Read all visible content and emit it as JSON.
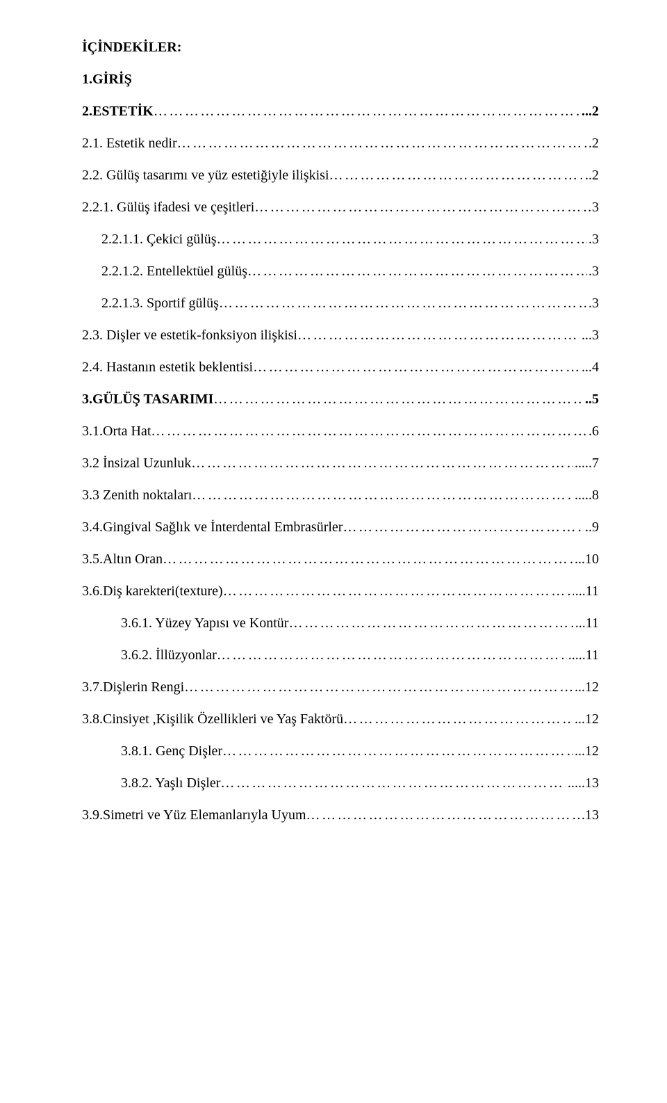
{
  "title": "İÇİNDEKİLER:",
  "entries": [
    {
      "class": "heading bold",
      "label": "1.GİRİŞ"
    },
    {
      "class": "line",
      "labelClass": "bold",
      "label": "2.ESTETİK",
      "leader": true,
      "page": "2",
      "pageClass": "bold",
      "pre": "..."
    },
    {
      "class": "line",
      "label": "2.1. Estetik nedir",
      "leader": true,
      "page": "2",
      "pre": "."
    },
    {
      "class": "line",
      "label": "2.2. Gülüş tasarımı ve yüz estetiğiyle ilişkisi",
      "leader": true,
      "page": "2",
      "pre": ".."
    },
    {
      "class": "line",
      "label": "2.2.1. Gülüş ifadesi ve çeşitleri",
      "leader": true,
      "page": "3"
    },
    {
      "class": "subline",
      "label": "2.2.1.1. Çekici gülüş",
      "leader": true,
      "page": "3",
      "pre": "."
    },
    {
      "class": "subline",
      "label": "2.2.1.2. Entellektüel gülüş",
      "leader": true,
      "page": "3",
      "pre": "."
    },
    {
      "class": "subline",
      "label": "2.2.1.3. Sportif gülüş",
      "leader": true,
      "page": "3",
      "pre": "."
    },
    {
      "class": "line",
      "label": "2.3. Dişler ve estetik-fonksiyon ilişkisi",
      "leader": true,
      "page": "3",
      "pre": "..."
    },
    {
      "class": "line",
      "label": "2.4. Hastanın estetik beklentisi",
      "leader": true,
      "page": "4",
      "pre": "..."
    },
    {
      "class": "line",
      "labelClass": "bold",
      "label": "3.GÜLÜŞ TASARIMI",
      "leader": true,
      "page": "5",
      "pageClass": "bold",
      "pre": ".."
    },
    {
      "class": "line",
      "label": "3.1.Orta Hat",
      "leader": true,
      "page": "6",
      "pre": "."
    },
    {
      "class": "line",
      "label": "3.2 İnsizal Uzunluk",
      "leader": true,
      "page": "7",
      "pre": "....."
    },
    {
      "class": "line",
      "label": "3.3 Zenith noktaları",
      "leader": true,
      "page": "8",
      "pre": "....."
    },
    {
      "class": "line",
      "label": "3.4.Gingival Sağlık ve İnterdental Embrasürler",
      "leader": true,
      "page": "9",
      "pre": ".."
    },
    {
      "class": "line",
      "label": "3.5.Altın Oran",
      "leader": true,
      "page": "10",
      "pre": "..."
    },
    {
      "class": "line",
      "label": "3.6.Diş karekteri(texture)",
      "leader": true,
      "page": "11",
      "pre": "..."
    },
    {
      "class": "sub2line",
      "label": "3.6.1. Yüzey Yapısı ve Kontür",
      "leader": true,
      "page": "11",
      "pre": "..."
    },
    {
      "class": "sub2line",
      "label": "3.6.2.  İllüzyonlar",
      "leader": true,
      "page": "11",
      "pre": "....."
    },
    {
      "class": "line",
      "label": "3.7.Dişlerin Rengi",
      "leader": true,
      "page": "12",
      "pre": "..."
    },
    {
      "class": "line",
      "label": "3.8.Cinsiyet ,Kişilik Özellikleri ve Yaş Faktörü",
      "leader": true,
      "page": "12",
      "pre": "..."
    },
    {
      "class": "sub2line",
      "label": "3.8.1. Genç Dişler",
      "leader": true,
      "page": "12",
      "pre": "..."
    },
    {
      "class": "sub2line",
      "label": "3.8.2. Yaşlı Dişler",
      "leader": true,
      "page": "13",
      "pre": "....."
    },
    {
      "class": "line",
      "label": "3.9.Simetri ve Yüz Elemanlarıyla Uyum",
      "leader": true,
      "page": "13",
      "pre": "."
    }
  ],
  "leaderChar": "…"
}
